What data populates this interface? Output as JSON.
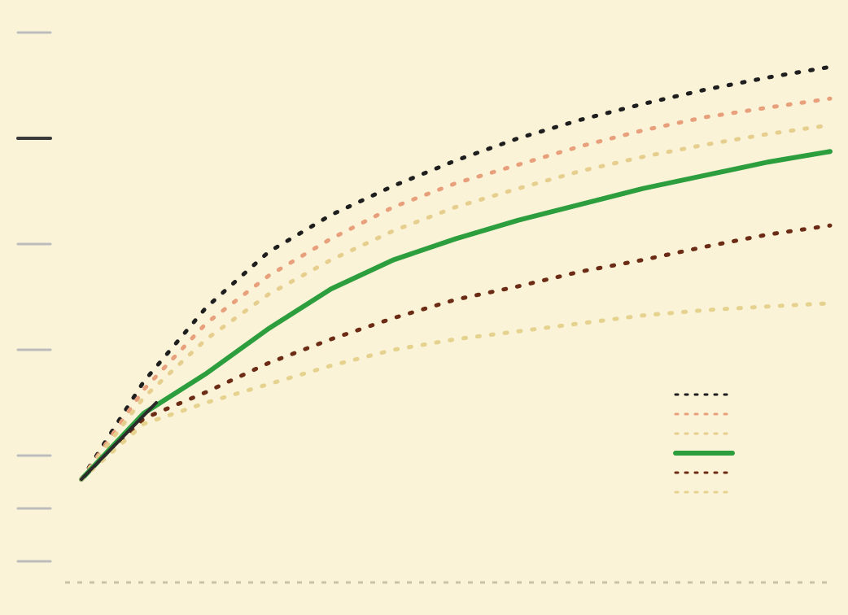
{
  "chart_data": {
    "type": "line",
    "title": "",
    "annotation": "",
    "xlabel": "",
    "ylabel": "",
    "x_ticks": [],
    "y_ticks": [],
    "x": [
      0,
      1,
      2,
      3,
      4,
      5,
      6,
      7,
      8,
      9,
      10,
      11,
      12
    ],
    "xlim": [
      0,
      12
    ],
    "ylim": [
      0,
      100
    ],
    "grid": false,
    "legend_position": "bottom-right",
    "series": [
      {
        "name": "",
        "color": "#1e1e1e",
        "style": "dotted",
        "width": 3,
        "values": [
          15.5,
          34.0,
          48.0,
          58.5,
          65.5,
          71.0,
          75.8,
          80.0,
          83.5,
          86.5,
          89.2,
          91.5,
          93.5
        ]
      },
      {
        "name": "",
        "color": "#e8a07c",
        "style": "dotted",
        "width": 3,
        "values": [
          15.5,
          32.5,
          45.0,
          54.0,
          61.0,
          67.0,
          71.5,
          75.0,
          78.5,
          81.5,
          84.0,
          85.8,
          87.5
        ]
      },
      {
        "name": "",
        "color": "#e6cf8e",
        "style": "dotted",
        "width": 3,
        "values": [
          15.5,
          31.0,
          42.0,
          50.5,
          57.0,
          62.5,
          67.0,
          70.5,
          73.8,
          76.5,
          78.8,
          80.8,
          82.5
        ]
      },
      {
        "name": "",
        "color": "#2d9e3e",
        "style": "solid",
        "width": 6,
        "values": [
          15.5,
          28.0,
          35.5,
          44.0,
          51.5,
          57.0,
          61.0,
          64.5,
          67.5,
          70.5,
          73.0,
          75.5,
          77.5
        ]
      },
      {
        "name": "",
        "color": "#6b2b14",
        "style": "dotted",
        "width": 3,
        "values": [
          15.5,
          27.0,
          32.0,
          37.5,
          42.0,
          46.0,
          49.5,
          52.0,
          54.8,
          57.0,
          59.5,
          61.8,
          63.5
        ]
      },
      {
        "name": "",
        "color": "#e4d28e",
        "style": "dotted",
        "width": 3,
        "values": [
          15.5,
          26.0,
          30.0,
          33.5,
          37.0,
          40.0,
          42.0,
          43.5,
          45.0,
          46.5,
          47.5,
          48.2,
          48.8
        ]
      }
    ]
  }
}
